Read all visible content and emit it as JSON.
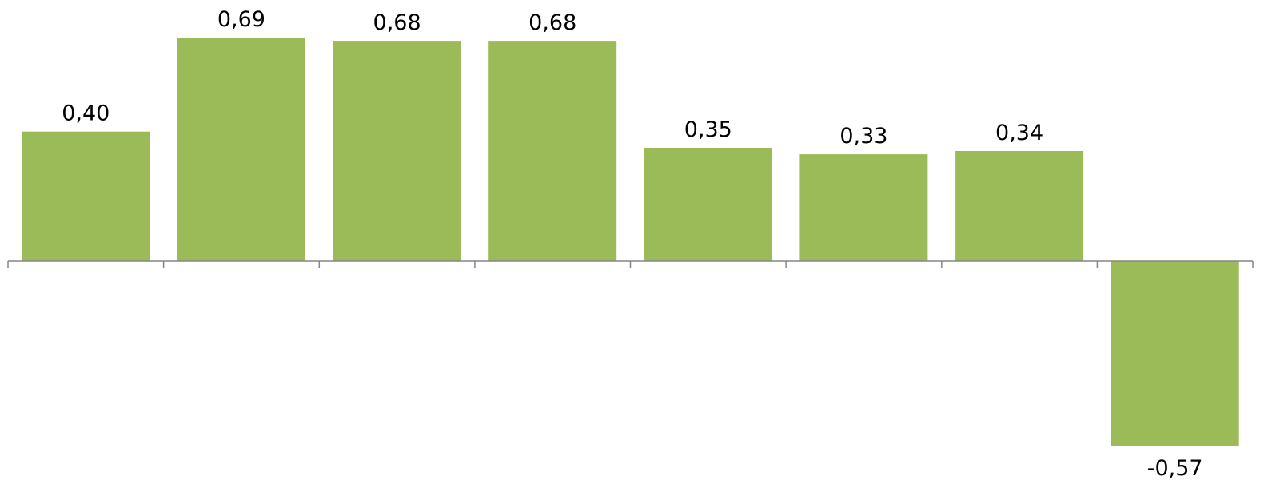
{
  "chart_data": {
    "type": "bar",
    "categories": [
      "",
      "",
      "",
      "",
      "",
      "",
      "",
      ""
    ],
    "values": [
      0.4,
      0.69,
      0.68,
      0.68,
      0.35,
      0.33,
      0.34,
      -0.57
    ],
    "data_labels": [
      "0,40",
      "0,69",
      "0,68",
      "0,68",
      "0,35",
      "0,33",
      "0,34",
      "-0,57"
    ],
    "title": "",
    "xlabel": "",
    "ylabel": "",
    "ylim": [
      -0.57,
      0.69
    ],
    "grid": false,
    "legend": "none",
    "bar_color": "#9BBB59",
    "axis_color": "#868686"
  }
}
